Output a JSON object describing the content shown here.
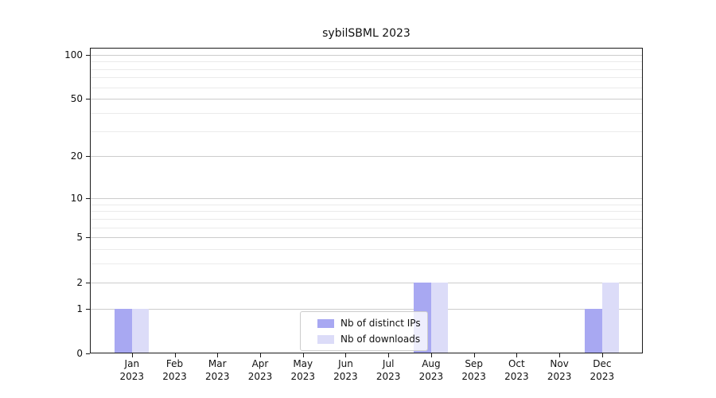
{
  "title": "sybilSBML 2023",
  "chart_data": {
    "type": "bar",
    "title": "sybilSBML 2023",
    "yscale": "log1p",
    "xlabel": "",
    "ylabel": "",
    "categories": [
      "Jan",
      "Feb",
      "Mar",
      "Apr",
      "May",
      "Jun",
      "Jul",
      "Aug",
      "Sep",
      "Oct",
      "Nov",
      "Dec"
    ],
    "category_year": "2023",
    "series": [
      {
        "name": "Nb of distinct IPs",
        "color": "#a8a8f2",
        "values": [
          1,
          0,
          0,
          0,
          0,
          0,
          0,
          2,
          0,
          0,
          0,
          1
        ]
      },
      {
        "name": "Nb of downloads",
        "color": "#dcdcf8",
        "values": [
          1,
          0,
          0,
          0,
          0,
          0,
          0,
          2,
          0,
          0,
          0,
          2
        ]
      }
    ],
    "y_major_ticks": [
      0,
      1,
      2,
      5,
      10,
      20,
      50,
      100
    ],
    "y_minor_gridlines": [
      3,
      4,
      6,
      7,
      8,
      9,
      30,
      40,
      60,
      70,
      80,
      90
    ],
    "ylim": [
      0,
      111.5
    ],
    "grid": true,
    "legend_position": "lower center"
  },
  "colors": {
    "grid_major": "#cccccc",
    "grid_minor": "#ebebeb",
    "spine": "#1a1a1a"
  }
}
